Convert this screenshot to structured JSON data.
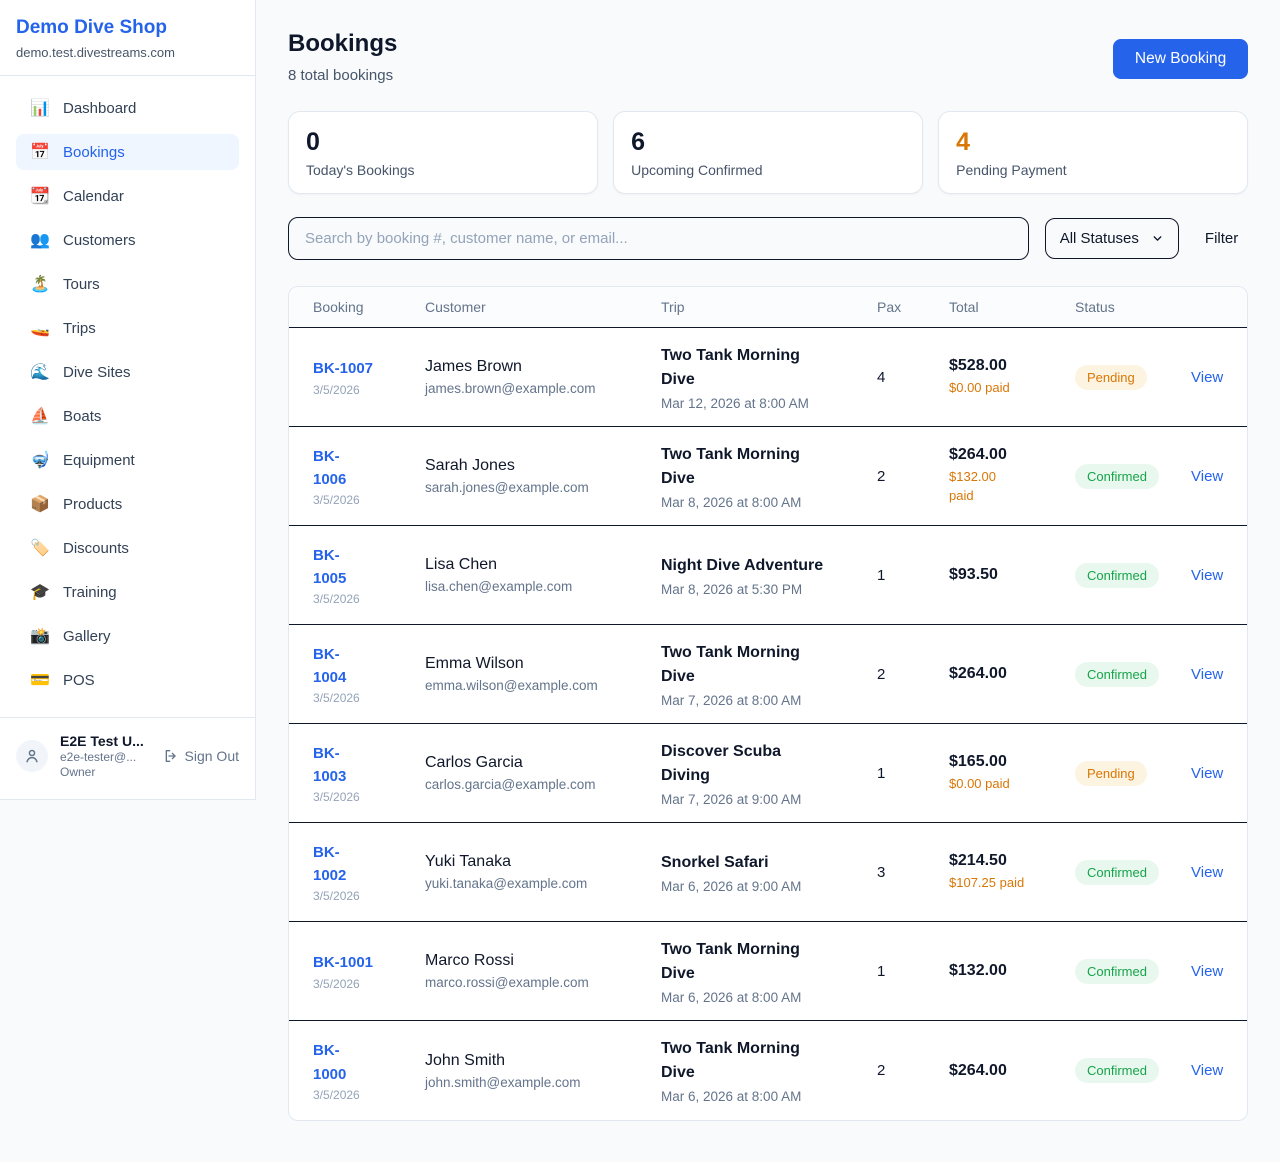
{
  "colors": {
    "accent_blue": "#2563eb",
    "orange": "#d97706",
    "green": "#16a34a",
    "page_bg": "#f8fafc",
    "row_divider": "#0f172a"
  },
  "sidebar": {
    "brand": "Demo Dive Shop",
    "domain": "demo.test.divestreams.com",
    "nav": [
      {
        "icon": "📊",
        "icon_name": "dashboard-icon",
        "label": "Dashboard",
        "active": false
      },
      {
        "icon": "📅",
        "icon_name": "bookings-icon",
        "label": "Bookings",
        "active": true
      },
      {
        "icon": "📆",
        "icon_name": "calendar-icon",
        "label": "Calendar",
        "active": false
      },
      {
        "icon": "👥",
        "icon_name": "customers-icon",
        "label": "Customers",
        "active": false
      },
      {
        "icon": "🏝️",
        "icon_name": "tours-icon",
        "label": "Tours",
        "active": false
      },
      {
        "icon": "🚤",
        "icon_name": "trips-icon",
        "label": "Trips",
        "active": false
      },
      {
        "icon": "🌊",
        "icon_name": "dive-sites-icon",
        "label": "Dive Sites",
        "active": false
      },
      {
        "icon": "⛵",
        "icon_name": "boats-icon",
        "label": "Boats",
        "active": false
      },
      {
        "icon": "🤿",
        "icon_name": "equipment-icon",
        "label": "Equipment",
        "active": false
      },
      {
        "icon": "📦",
        "icon_name": "products-icon",
        "label": "Products",
        "active": false
      },
      {
        "icon": "🏷️",
        "icon_name": "discounts-icon",
        "label": "Discounts",
        "active": false
      },
      {
        "icon": "🎓",
        "icon_name": "training-icon",
        "label": "Training",
        "active": false
      },
      {
        "icon": "📸",
        "icon_name": "gallery-icon",
        "label": "Gallery",
        "active": false
      },
      {
        "icon": "💳",
        "icon_name": "pos-icon",
        "label": "POS",
        "active": false
      }
    ],
    "user": {
      "name": "E2E Test U...",
      "email": "e2e-tester@...",
      "role": "Owner",
      "sign_out": "Sign Out"
    }
  },
  "header": {
    "title": "Bookings",
    "subtitle": "8 total bookings",
    "new_booking": "New Booking"
  },
  "stats": [
    {
      "value": "0",
      "label": "Today's Bookings",
      "highlight": false
    },
    {
      "value": "6",
      "label": "Upcoming Confirmed",
      "highlight": false
    },
    {
      "value": "4",
      "label": "Pending Payment",
      "highlight": true
    }
  ],
  "controls": {
    "search_placeholder": "Search by booking #, customer name, or email...",
    "status_filter": "All Statuses",
    "filter_label": "Filter"
  },
  "table": {
    "headers": [
      "Booking",
      "Customer",
      "Trip",
      "Pax",
      "Total",
      "Status"
    ],
    "rows": [
      {
        "id_lines": [
          "BK-1007"
        ],
        "date": "3/5/2026",
        "customer": "James Brown",
        "email": "james.brown@example.com",
        "trip_lines": [
          "Two Tank Morning",
          "Dive"
        ],
        "trip_date": "Mar 12, 2026 at 8:00 AM",
        "pax": "4",
        "total": "$528.00",
        "paid_lines": [
          "$0.00 paid"
        ],
        "status": "Pending",
        "action": "View"
      },
      {
        "id_lines": [
          "BK-",
          "1006"
        ],
        "date": "3/5/2026",
        "customer": "Sarah Jones",
        "email": "sarah.jones@example.com",
        "trip_lines": [
          "Two Tank Morning",
          "Dive"
        ],
        "trip_date": "Mar 8, 2026 at 8:00 AM",
        "pax": "2",
        "total": "$264.00",
        "paid_lines": [
          "$132.00",
          "paid"
        ],
        "status": "Confirmed",
        "action": "View"
      },
      {
        "id_lines": [
          "BK-",
          "1005"
        ],
        "date": "3/5/2026",
        "customer": "Lisa Chen",
        "email": "lisa.chen@example.com",
        "trip_lines": [
          "Night Dive Adventure"
        ],
        "trip_date": "Mar 8, 2026 at 5:30 PM",
        "pax": "1",
        "total": "$93.50",
        "paid_lines": [],
        "status": "Confirmed",
        "action": "View"
      },
      {
        "id_lines": [
          "BK-",
          "1004"
        ],
        "date": "3/5/2026",
        "customer": "Emma Wilson",
        "email": "emma.wilson@example.com",
        "trip_lines": [
          "Two Tank Morning",
          "Dive"
        ],
        "trip_date": "Mar 7, 2026 at 8:00 AM",
        "pax": "2",
        "total": "$264.00",
        "paid_lines": [],
        "status": "Confirmed",
        "action": "View"
      },
      {
        "id_lines": [
          "BK-",
          "1003"
        ],
        "date": "3/5/2026",
        "customer": "Carlos Garcia",
        "email": "carlos.garcia@example.com",
        "trip_lines": [
          "Discover Scuba",
          "Diving"
        ],
        "trip_date": "Mar 7, 2026 at 9:00 AM",
        "pax": "1",
        "total": "$165.00",
        "paid_lines": [
          "$0.00 paid"
        ],
        "status": "Pending",
        "action": "View"
      },
      {
        "id_lines": [
          "BK-",
          "1002"
        ],
        "date": "3/5/2026",
        "customer": "Yuki Tanaka",
        "email": "yuki.tanaka@example.com",
        "trip_lines": [
          "Snorkel Safari"
        ],
        "trip_date": "Mar 6, 2026 at 9:00 AM",
        "pax": "3",
        "total": "$214.50",
        "paid_lines": [
          "$107.25 paid"
        ],
        "status": "Confirmed",
        "action": "View"
      },
      {
        "id_lines": [
          "BK-1001"
        ],
        "date": "3/5/2026",
        "customer": "Marco Rossi",
        "email": "marco.rossi@example.com",
        "trip_lines": [
          "Two Tank Morning",
          "Dive"
        ],
        "trip_date": "Mar 6, 2026 at 8:00 AM",
        "pax": "1",
        "total": "$132.00",
        "paid_lines": [],
        "status": "Confirmed",
        "action": "View"
      },
      {
        "id_lines": [
          "BK-",
          "1000"
        ],
        "date": "3/5/2026",
        "customer": "John Smith",
        "email": "john.smith@example.com",
        "trip_lines": [
          "Two Tank Morning",
          "Dive"
        ],
        "trip_date": "Mar 6, 2026 at 8:00 AM",
        "pax": "2",
        "total": "$264.00",
        "paid_lines": [],
        "status": "Confirmed",
        "action": "View"
      }
    ]
  }
}
